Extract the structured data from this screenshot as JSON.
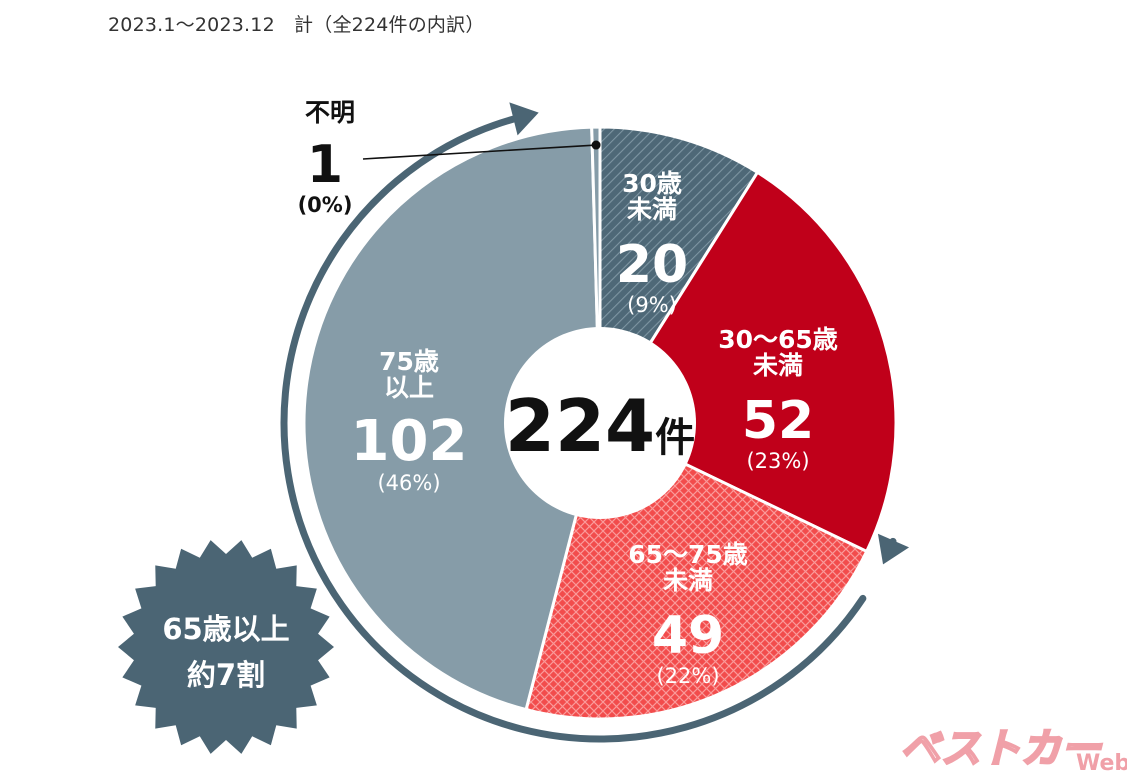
{
  "header": {
    "title": "2023.1〜2023.12　計（全224件の内訳）"
  },
  "chart_data": {
    "type": "pie",
    "total": 224,
    "center_label": {
      "number": "224",
      "unit": "件"
    },
    "slices": [
      {
        "label_lines": [
          "30歳",
          "未満"
        ],
        "value": 20,
        "value_text": "20",
        "percent_text": "(9%)",
        "color": "#4e6877",
        "pattern": "hatch"
      },
      {
        "label_lines": [
          "30〜65歳",
          "未満"
        ],
        "value": 52,
        "value_text": "52",
        "percent_text": "(23%)",
        "color": "#c0001a",
        "pattern": "solid"
      },
      {
        "label_lines": [
          "65〜75歳",
          "未満"
        ],
        "value": 49,
        "value_text": "49",
        "percent_text": "(22%)",
        "color": "#f24c4c",
        "pattern": "crosshatch"
      },
      {
        "label_lines": [
          "75歳",
          "以上"
        ],
        "value": 102,
        "value_text": "102",
        "percent_text": "(46%)",
        "color": "#869ca8",
        "pattern": "solid"
      },
      {
        "label_lines": [
          "不明"
        ],
        "value": 1,
        "value_text": "1",
        "percent_text": "(0%)",
        "color": "#869ca8",
        "pattern": "solid"
      }
    ],
    "badge": {
      "lines": [
        "65歳以上",
        "約7割"
      ],
      "color": "#4b6574"
    },
    "arc_color": "#4b6574"
  },
  "watermark": {
    "brand": "ベストカー",
    "suffix": "Web",
    "color": "#f0a0a8"
  }
}
